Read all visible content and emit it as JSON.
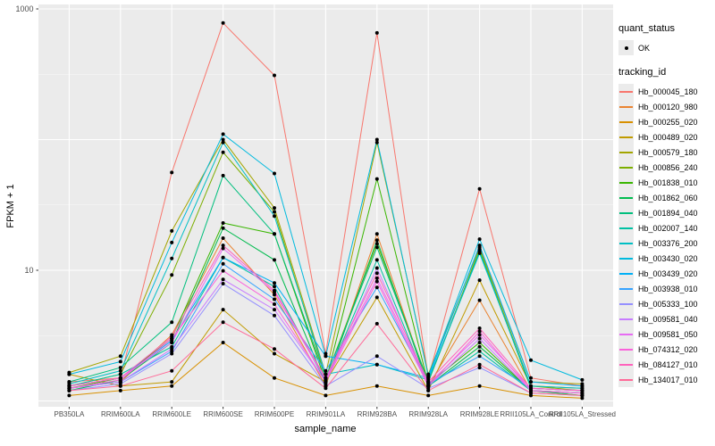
{
  "chart_data": {
    "type": "line",
    "title": "",
    "xlabel": "sample_name",
    "ylabel": "FPKM + 1",
    "y_scale": "log10",
    "ylim": [
      1,
      1000
    ],
    "y_tick_labels": [
      1000,
      10
    ],
    "y_gridlines_major": [
      1,
      10,
      100,
      1000
    ],
    "y_gridlines_minor": [
      3.162,
      31.62,
      316.2
    ],
    "grid": true,
    "legend_position": "right",
    "panel_background": "#ebebeb",
    "gridline_color": "#ffffff",
    "axis_text_color": "#4d4d4d",
    "point_color": "#000000",
    "categories": [
      "PB350LA",
      "RRIM600LA",
      "RRIM600LE",
      "RRIM600SE",
      "RRIM600PE",
      "RRIM901LA",
      "RRIM928BA",
      "RRIM928LA",
      "RRIM928LE",
      "RRII105LA_Control",
      "RRII105LA_Stressed"
    ],
    "series": [
      {
        "name": "Hb_000045_180",
        "color": "#F8766D",
        "values": [
          1.4,
          1.5,
          56,
          780,
          310,
          2.3,
          655,
          1.5,
          42,
          1.5,
          1.3
        ]
      },
      {
        "name": "Hb_000120_980",
        "color": "#EA8331",
        "values": [
          1.25,
          1.4,
          3.2,
          17.6,
          6.5,
          1.3,
          19,
          1.3,
          5.9,
          1.2,
          1.1
        ]
      },
      {
        "name": "Hb_000255_020",
        "color": "#D89000",
        "values": [
          1.1,
          1.2,
          1.3,
          2.8,
          1.5,
          1.1,
          1.3,
          1.1,
          1.3,
          1.1,
          1.05
        ]
      },
      {
        "name": "Hb_000489_020",
        "color": "#C09B00",
        "values": [
          1.6,
          1.3,
          1.4,
          5.0,
          2.3,
          1.4,
          6.2,
          1.2,
          8.4,
          1.3,
          1.25
        ]
      },
      {
        "name": "Hb_000579_180",
        "color": "#A3A500",
        "values": [
          1.65,
          2.2,
          20,
          100,
          30,
          1.6,
          95,
          1.6,
          15,
          1.4,
          1.35
        ]
      },
      {
        "name": "Hb_000856_240",
        "color": "#7CAE00",
        "values": [
          1.3,
          1.6,
          9.2,
          80,
          28,
          1.5,
          16,
          1.4,
          14.5,
          1.3,
          1.2
        ]
      },
      {
        "name": "Hb_001838_010",
        "color": "#39B600",
        "values": [
          1.25,
          1.5,
          3.0,
          23,
          19,
          1.4,
          50,
          1.35,
          2.8,
          1.2,
          1.15
        ]
      },
      {
        "name": "Hb_001862_060",
        "color": "#00BB4E",
        "values": [
          1.2,
          1.45,
          2.8,
          21,
          12,
          1.35,
          17,
          1.3,
          2.6,
          1.2,
          1.1
        ]
      },
      {
        "name": "Hb_001894_040",
        "color": "#00BF7D",
        "values": [
          1.4,
          1.8,
          4.0,
          53,
          19,
          1.5,
          15,
          1.4,
          14,
          1.25,
          1.2
        ]
      },
      {
        "name": "Hb_002007_140",
        "color": "#00C1A3",
        "values": [
          1.3,
          1.6,
          2.6,
          12.5,
          7.5,
          1.4,
          12,
          1.3,
          2.4,
          1.2,
          1.15
        ]
      },
      {
        "name": "Hb_003376_200",
        "color": "#00BFC4",
        "values": [
          1.35,
          1.7,
          12.3,
          95,
          26,
          1.6,
          1.9,
          1.45,
          13.5,
          1.3,
          1.25
        ]
      },
      {
        "name": "Hb_003430_020",
        "color": "#00BADE",
        "values": [
          1.6,
          2.0,
          16.3,
          110,
          55,
          2.2,
          100,
          1.55,
          17.3,
          2.05,
          1.45
        ]
      },
      {
        "name": "Hb_003439_020",
        "color": "#00B0F6",
        "values": [
          1.3,
          1.5,
          2.9,
          12.5,
          8.0,
          2.2,
          1.9,
          1.5,
          15.5,
          1.4,
          1.3
        ]
      },
      {
        "name": "Hb_003938_010",
        "color": "#35A2FF",
        "values": [
          1.25,
          1.4,
          2.4,
          11.2,
          6.0,
          1.7,
          7.4,
          1.35,
          2.2,
          1.25,
          1.2
        ]
      },
      {
        "name": "Hb_005333_100",
        "color": "#9590FF",
        "values": [
          1.2,
          1.35,
          2.3,
          7.9,
          4.5,
          1.3,
          2.2,
          1.25,
          1.8,
          1.15,
          1.1
        ]
      },
      {
        "name": "Hb_009581_040",
        "color": "#C77CFF",
        "values": [
          1.25,
          1.4,
          2.5,
          8.5,
          5.0,
          1.4,
          10.4,
          1.3,
          3.0,
          1.2,
          1.15
        ]
      },
      {
        "name": "Hb_009581_050",
        "color": "#E76BF3",
        "values": [
          1.3,
          1.5,
          2.8,
          14.7,
          6.8,
          1.45,
          8.7,
          1.35,
          3.2,
          1.25,
          1.2
        ]
      },
      {
        "name": "Hb_074312_020",
        "color": "#FA62DB",
        "values": [
          1.25,
          1.45,
          3.0,
          9.9,
          5.5,
          1.4,
          8.2,
          1.3,
          3.4,
          1.2,
          1.15
        ]
      },
      {
        "name": "Hb_084127_010",
        "color": "#FF62BC",
        "values": [
          1.3,
          1.5,
          3.1,
          15.5,
          7.0,
          1.5,
          9.5,
          1.4,
          3.6,
          1.25,
          1.2
        ]
      },
      {
        "name": "Hb_134017_010",
        "color": "#FF6A98",
        "values": [
          1.2,
          1.3,
          1.7,
          4.0,
          2.5,
          1.25,
          3.9,
          1.2,
          1.9,
          1.15,
          1.1
        ]
      }
    ]
  },
  "legend": {
    "quant_status_title": "quant_status",
    "quant_status_items": [
      "OK"
    ],
    "tracking_title": "tracking_id"
  }
}
